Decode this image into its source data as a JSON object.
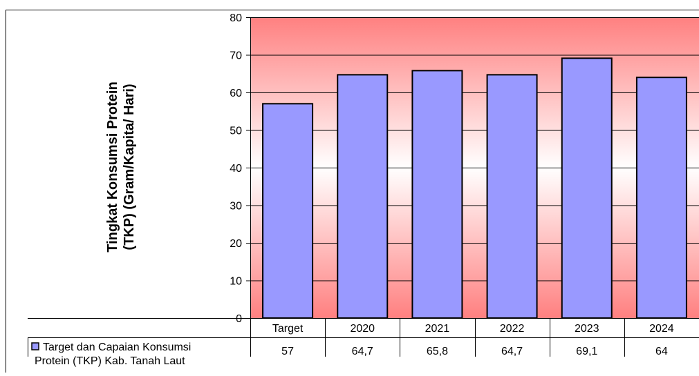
{
  "chart_data": {
    "type": "bar",
    "ylabel": "Tingkat  Konsumsi Protein\n(TKP) (Gram/Kapita/ Hari)",
    "categories": [
      "Target",
      "2020",
      "2021",
      "2022",
      "2023",
      "2024"
    ],
    "series": [
      {
        "name": "Target dan Capaian Konsumsi Protein (TKP) Kab. Tanah Laut",
        "values": [
          57,
          64.7,
          65.8,
          64.7,
          69.1,
          64
        ],
        "value_labels": [
          "57",
          "64,7",
          "65,8",
          "64,7",
          "69,1",
          "64"
        ],
        "color": "#9999ff"
      }
    ],
    "ylim": [
      0,
      80
    ],
    "yticks": [
      0,
      10,
      20,
      30,
      40,
      50,
      60,
      70,
      80
    ],
    "grid": true,
    "legend": "data-table",
    "plot_background": "gradient red-white-red",
    "colors": {
      "bar": "#9999ff",
      "bar_border": "#000000",
      "bg_edge": "#ff8080",
      "bg_center": "#ffffff"
    }
  }
}
